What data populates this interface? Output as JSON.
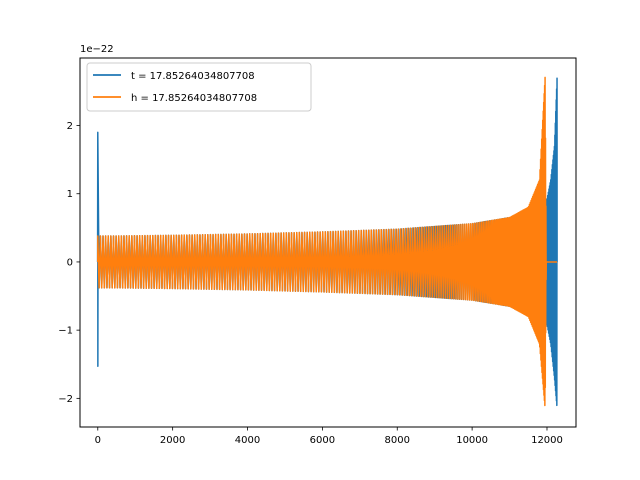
{
  "chart_data": {
    "type": "line",
    "title": "",
    "xlabel": "",
    "ylabel": "",
    "y_scale_label": "1e−22",
    "xlim": [
      -475,
      12775
    ],
    "ylim": [
      -2.42,
      2.99
    ],
    "xticks": [
      0,
      2000,
      4000,
      6000,
      8000,
      10000,
      12000
    ],
    "xtick_labels": [
      "0",
      "2000",
      "4000",
      "6000",
      "8000",
      "10000",
      "12000"
    ],
    "yticks": [
      -2,
      -1,
      0,
      1,
      2
    ],
    "ytick_labels": [
      "−2",
      "−1",
      "0",
      "1",
      "2"
    ],
    "grid": false,
    "legend_position": "upper-left",
    "series": [
      {
        "name": "t = 17.85264034807708",
        "color": "#1f77b4",
        "description_points": {
          "x": [
            0,
            30,
            500,
            2000,
            4000,
            6000,
            8000,
            10000,
            11000,
            11500,
            11800,
            12000,
            12100,
            12200,
            12270
          ],
          "envelope": [
            1.9,
            0.38,
            0.38,
            0.39,
            0.41,
            0.44,
            0.48,
            0.56,
            0.65,
            0.76,
            0.9,
            0.92,
            1.2,
            1.7,
            2.72
          ],
          "envelope_min": [
            -1.53,
            -0.38,
            -0.38,
            -0.39,
            -0.41,
            -0.44,
            -0.48,
            -0.56,
            -0.65,
            -0.76,
            -0.9,
            -0.92,
            -1.2,
            -1.7,
            -2.15
          ]
        }
      },
      {
        "name": "h = 17.85264034807708",
        "color": "#ff7f0e",
        "description_points": {
          "x": [
            0,
            30,
            500,
            2000,
            4000,
            6000,
            8000,
            10000,
            11000,
            11500,
            11800,
            11950,
            11980
          ],
          "envelope": [
            0.38,
            0.38,
            0.38,
            0.39,
            0.41,
            0.44,
            0.48,
            0.56,
            0.65,
            0.8,
            1.2,
            2.72,
            0.0
          ],
          "envelope_min": [
            -0.38,
            -0.38,
            -0.38,
            -0.39,
            -0.41,
            -0.44,
            -0.48,
            -0.56,
            -0.65,
            -0.8,
            -1.2,
            -2.15,
            0.0
          ]
        }
      }
    ]
  }
}
